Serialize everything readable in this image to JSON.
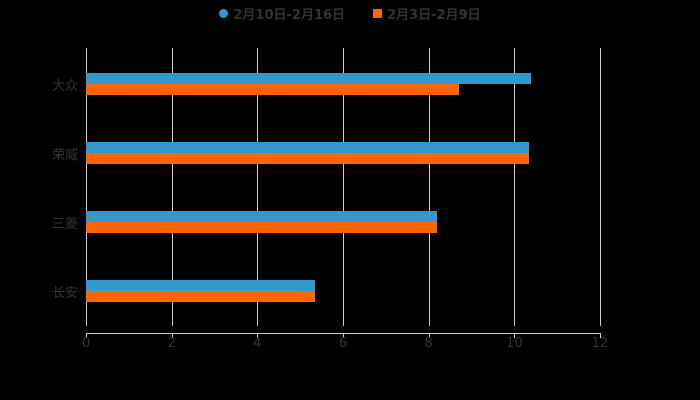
{
  "chart_data": {
    "type": "bar",
    "orientation": "horizontal",
    "title": "",
    "xlabel": "",
    "ylabel": "",
    "xlim": [
      0,
      12
    ],
    "x_ticks": [
      "0",
      "2",
      "4",
      "6",
      "8",
      "10",
      "12"
    ],
    "grid": true,
    "legend_position": "top",
    "categories": [
      "大众",
      "荣威",
      "三菱",
      "长安"
    ],
    "series": [
      {
        "name": "2月10日-2月16日",
        "color": "#3399cc",
        "values": [
          10.4,
          10.35,
          8.2,
          5.35
        ]
      },
      {
        "name": "2月3日-2月9日",
        "color": "#ff6600",
        "values": [
          8.7,
          10.35,
          8.2,
          5.35
        ]
      }
    ]
  },
  "legend": [
    {
      "label": "2月10日-2月16日",
      "color": "#3399cc",
      "shape": "circle"
    },
    {
      "label": "2月3日-2月9日",
      "color": "#ff6600",
      "shape": "square"
    }
  ]
}
